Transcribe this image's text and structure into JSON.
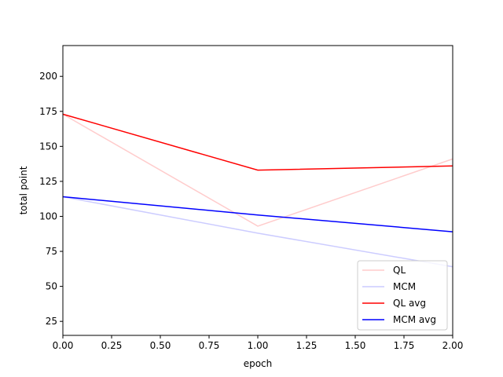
{
  "chart_data": {
    "type": "line",
    "xlabel": "epoch",
    "ylabel": "total point",
    "xlim": [
      0,
      2
    ],
    "ylim": [
      15,
      222
    ],
    "xticks": [
      "0.00",
      "0.25",
      "0.50",
      "0.75",
      "1.00",
      "1.25",
      "1.50",
      "1.75",
      "2.00"
    ],
    "yticks": [
      "25",
      "50",
      "75",
      "100",
      "125",
      "150",
      "175",
      "200"
    ],
    "grid": false,
    "legend_position": "lower-right",
    "series": [
      {
        "name": "QL",
        "color": "#ffcccc",
        "x": [
          0,
          1,
          2
        ],
        "y": [
          173,
          93,
          141
        ]
      },
      {
        "name": "MCM",
        "color": "#ccccff",
        "x": [
          0,
          1,
          2
        ],
        "y": [
          114,
          88,
          64
        ]
      },
      {
        "name": "QL avg",
        "color": "#ff0000",
        "x": [
          0,
          1,
          2
        ],
        "y": [
          173,
          133,
          136
        ]
      },
      {
        "name": "MCM avg",
        "color": "#0000ff",
        "x": [
          0,
          1,
          2
        ],
        "y": [
          114,
          101,
          89
        ]
      }
    ]
  }
}
